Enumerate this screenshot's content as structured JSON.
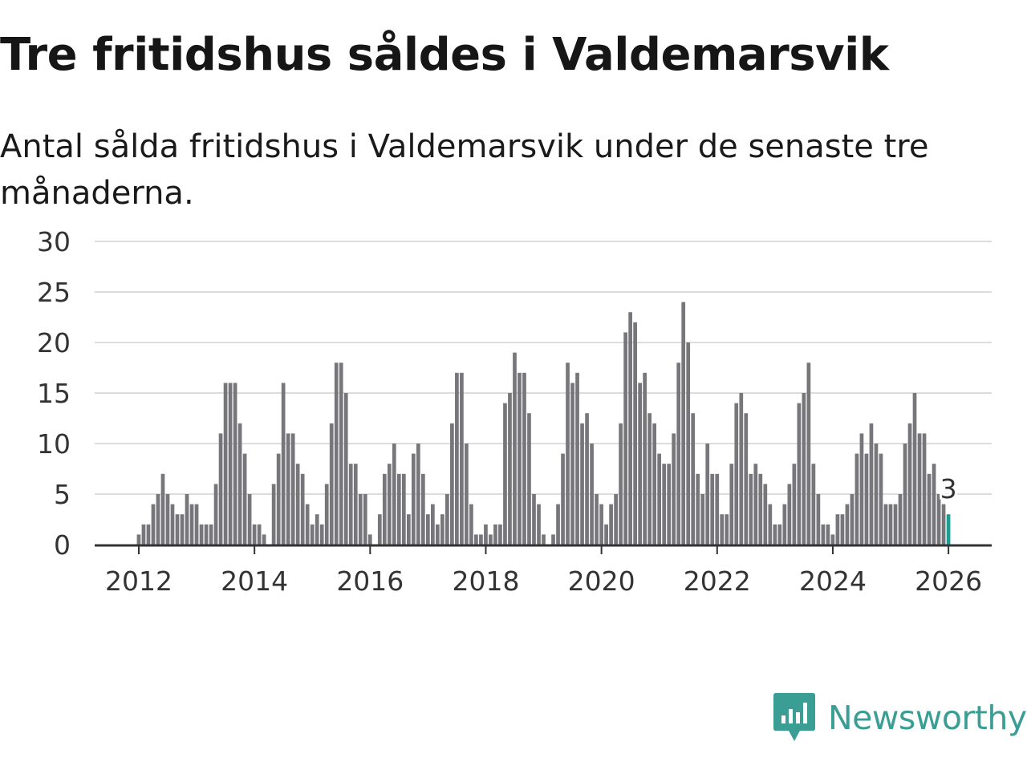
{
  "title": "Tre fritidshus såldes i Valdemarsvik",
  "subtitle": "Antal sålda fritidshus i Valdemarsvik under de senaste tre månaderna.",
  "brand": {
    "name": "Newsworthy",
    "color": "#3a9e94"
  },
  "colors": {
    "bar": "#77767a",
    "highlight": "#1b9e93",
    "grid": "#dcdcdc",
    "axis": "#333333"
  },
  "chart_data": {
    "type": "bar",
    "title": "Tre fritidshus såldes i Valdemarsvik",
    "xlabel": "",
    "ylabel": "",
    "ylim": [
      0,
      30
    ],
    "yticks": [
      "0",
      "5",
      "10",
      "15",
      "20",
      "25",
      "30"
    ],
    "xticks": [
      "2012",
      "2014",
      "2016",
      "2018",
      "2020",
      "2022",
      "2024",
      "2026"
    ],
    "start": "2011-01",
    "highlight_label": "3",
    "values": [
      0,
      0,
      0,
      0,
      0,
      0,
      0,
      0,
      0,
      0,
      0,
      0,
      1,
      2,
      2,
      4,
      5,
      7,
      5,
      4,
      3,
      3,
      5,
      4,
      4,
      2,
      2,
      2,
      6,
      11,
      16,
      16,
      16,
      12,
      9,
      5,
      2,
      2,
      1,
      0,
      6,
      9,
      16,
      11,
      11,
      8,
      7,
      4,
      2,
      3,
      2,
      6,
      12,
      18,
      18,
      15,
      8,
      8,
      5,
      5,
      1,
      0,
      3,
      7,
      8,
      10,
      7,
      7,
      3,
      9,
      10,
      7,
      3,
      4,
      2,
      3,
      5,
      12,
      17,
      17,
      10,
      4,
      1,
      1,
      2,
      1,
      2,
      2,
      14,
      15,
      19,
      17,
      17,
      13,
      5,
      4,
      1,
      0,
      1,
      4,
      9,
      18,
      16,
      17,
      12,
      13,
      10,
      5,
      4,
      2,
      4,
      5,
      12,
      21,
      23,
      22,
      16,
      17,
      13,
      12,
      9,
      8,
      8,
      11,
      18,
      24,
      20,
      13,
      7,
      5,
      10,
      7,
      7,
      3,
      3,
      8,
      14,
      15,
      13,
      7,
      8,
      7,
      6,
      4,
      2,
      2,
      4,
      6,
      8,
      14,
      15,
      18,
      8,
      5,
      2,
      2,
      1,
      3,
      3,
      4,
      5,
      9,
      11,
      9,
      12,
      10,
      9,
      4,
      4,
      4,
      5,
      10,
      12,
      15,
      11,
      11,
      7,
      8,
      5,
      4,
      3
    ]
  }
}
